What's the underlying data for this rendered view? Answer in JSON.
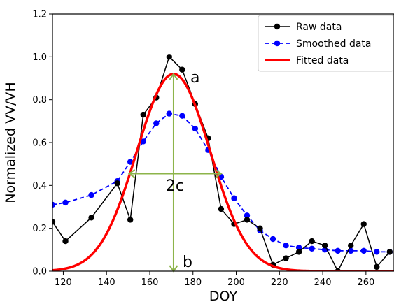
{
  "chart_data": {
    "type": "line",
    "title": "",
    "xlabel": "DOY",
    "ylabel": "Normalized VV/VH",
    "xlim": [
      115,
      273
    ],
    "ylim": [
      0.0,
      1.2
    ],
    "xticks": [
      120,
      140,
      160,
      180,
      200,
      220,
      240,
      260
    ],
    "yticks": [
      0.0,
      0.2,
      0.4,
      0.6,
      0.8,
      1.0,
      1.2
    ],
    "xtick_labels": [
      "120",
      "140",
      "160",
      "180",
      "200",
      "220",
      "240",
      "260"
    ],
    "ytick_labels": [
      "0.0",
      "0.2",
      "0.4",
      "0.6",
      "0.8",
      "1.0",
      "1.2"
    ],
    "grid": false,
    "legend_position": "top-right",
    "series": [
      {
        "name": "Raw data",
        "style": "solid-markers",
        "color": "#000000",
        "x": [
          115,
          121,
          133,
          145,
          151,
          157,
          163,
          169,
          175,
          181,
          187,
          193,
          199,
          205,
          211,
          217,
          223,
          229,
          235,
          241,
          247,
          253,
          259,
          265,
          271
        ],
        "y": [
          0.23,
          0.14,
          0.25,
          0.41,
          0.24,
          0.73,
          0.81,
          1.0,
          0.94,
          0.78,
          0.62,
          0.29,
          0.22,
          0.24,
          0.2,
          0.03,
          0.06,
          0.09,
          0.14,
          0.12,
          0.0,
          0.12,
          0.22,
          0.02,
          0.09
        ]
      },
      {
        "name": "Smoothed data",
        "style": "dashed-markers",
        "color": "#0000ff",
        "x": [
          115,
          121,
          133,
          145,
          151,
          157,
          163,
          169,
          175,
          181,
          187,
          193,
          199,
          205,
          211,
          217,
          223,
          229,
          235,
          241,
          247,
          253,
          259,
          265,
          271
        ],
        "y": [
          0.31,
          0.32,
          0.355,
          0.42,
          0.51,
          0.605,
          0.69,
          0.735,
          0.725,
          0.665,
          0.565,
          0.44,
          0.34,
          0.26,
          0.19,
          0.15,
          0.12,
          0.11,
          0.105,
          0.1,
          0.095,
          0.095,
          0.095,
          0.09,
          0.09
        ]
      },
      {
        "name": "Fitted data",
        "style": "solid-thick",
        "color": "#ff0000",
        "model": "gaussian",
        "amplitude": 0.92,
        "center": 171,
        "sigma": 17,
        "baseline": 0.0
      }
    ],
    "annotations": [
      {
        "label": "a",
        "x": 171,
        "y_from": 0.0,
        "y_to": 0.92,
        "orientation": "vertical"
      },
      {
        "label": "b",
        "x": 171,
        "y": 0.0
      },
      {
        "label": "2c",
        "x_from": 150.5,
        "x_to": 193,
        "y": 0.455,
        "orientation": "horizontal"
      }
    ],
    "annotation_color": "#8db44a"
  }
}
